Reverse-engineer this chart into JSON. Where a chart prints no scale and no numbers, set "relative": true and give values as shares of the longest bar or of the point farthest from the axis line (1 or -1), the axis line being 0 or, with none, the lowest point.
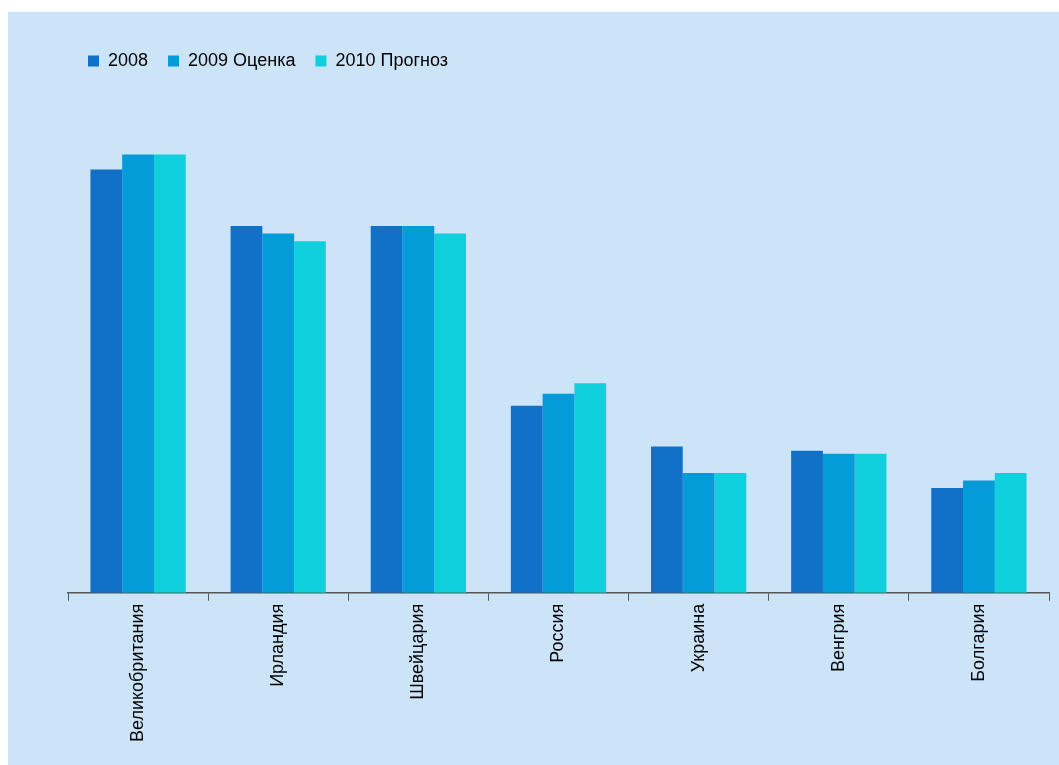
{
  "chart_data": {
    "type": "bar",
    "relative": true,
    "categories": [
      "Великобритания",
      "Ирландия",
      "Швейцария",
      "Россия",
      "Украина",
      "Венгрия",
      "Болгария"
    ],
    "series": [
      {
        "name": "2008",
        "color": "#1170c8",
        "values": [
          0.966,
          0.837,
          0.837,
          0.427,
          0.334,
          0.324,
          0.239
        ]
      },
      {
        "name": "2009 Оценка",
        "color": "#039bd8",
        "values": [
          1,
          0.82,
          0.837,
          0.454,
          0.273,
          0.317,
          0.256
        ]
      },
      {
        "name": "2010 Прогноз",
        "color": "#0fd0dc",
        "values": [
          1,
          0.802,
          0.82,
          0.478,
          0.273,
          0.317,
          0.273
        ]
      }
    ],
    "legend": "top left",
    "grid": false
  }
}
